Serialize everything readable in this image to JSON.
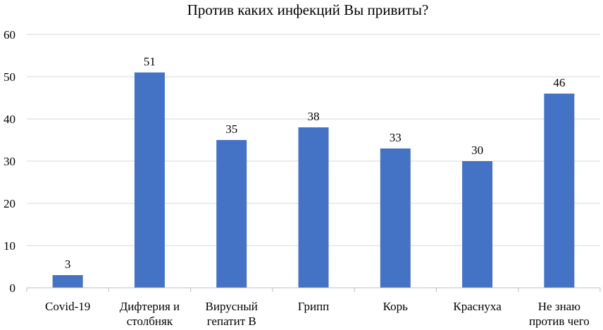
{
  "chart_data": {
    "type": "bar",
    "title": "Против каких инфекций Вы привиты?",
    "categories": [
      [
        "Covid-19"
      ],
      [
        "Дифтерия и",
        "столбняк"
      ],
      [
        "Вирусный",
        "гепатит В"
      ],
      [
        "Грипп"
      ],
      [
        "Корь"
      ],
      [
        "Краснуха"
      ],
      [
        "Не знаю",
        "против чего"
      ]
    ],
    "values": [
      3,
      51,
      35,
      38,
      33,
      30,
      46
    ],
    "data_labels": [
      "3",
      "51",
      "35",
      "38",
      "33",
      "30",
      "46"
    ],
    "ylim": [
      0,
      60
    ],
    "yticks": [
      "0",
      "10",
      "20",
      "30",
      "40",
      "50",
      "60"
    ],
    "grid": true,
    "bar_color": "#4472c4"
  }
}
